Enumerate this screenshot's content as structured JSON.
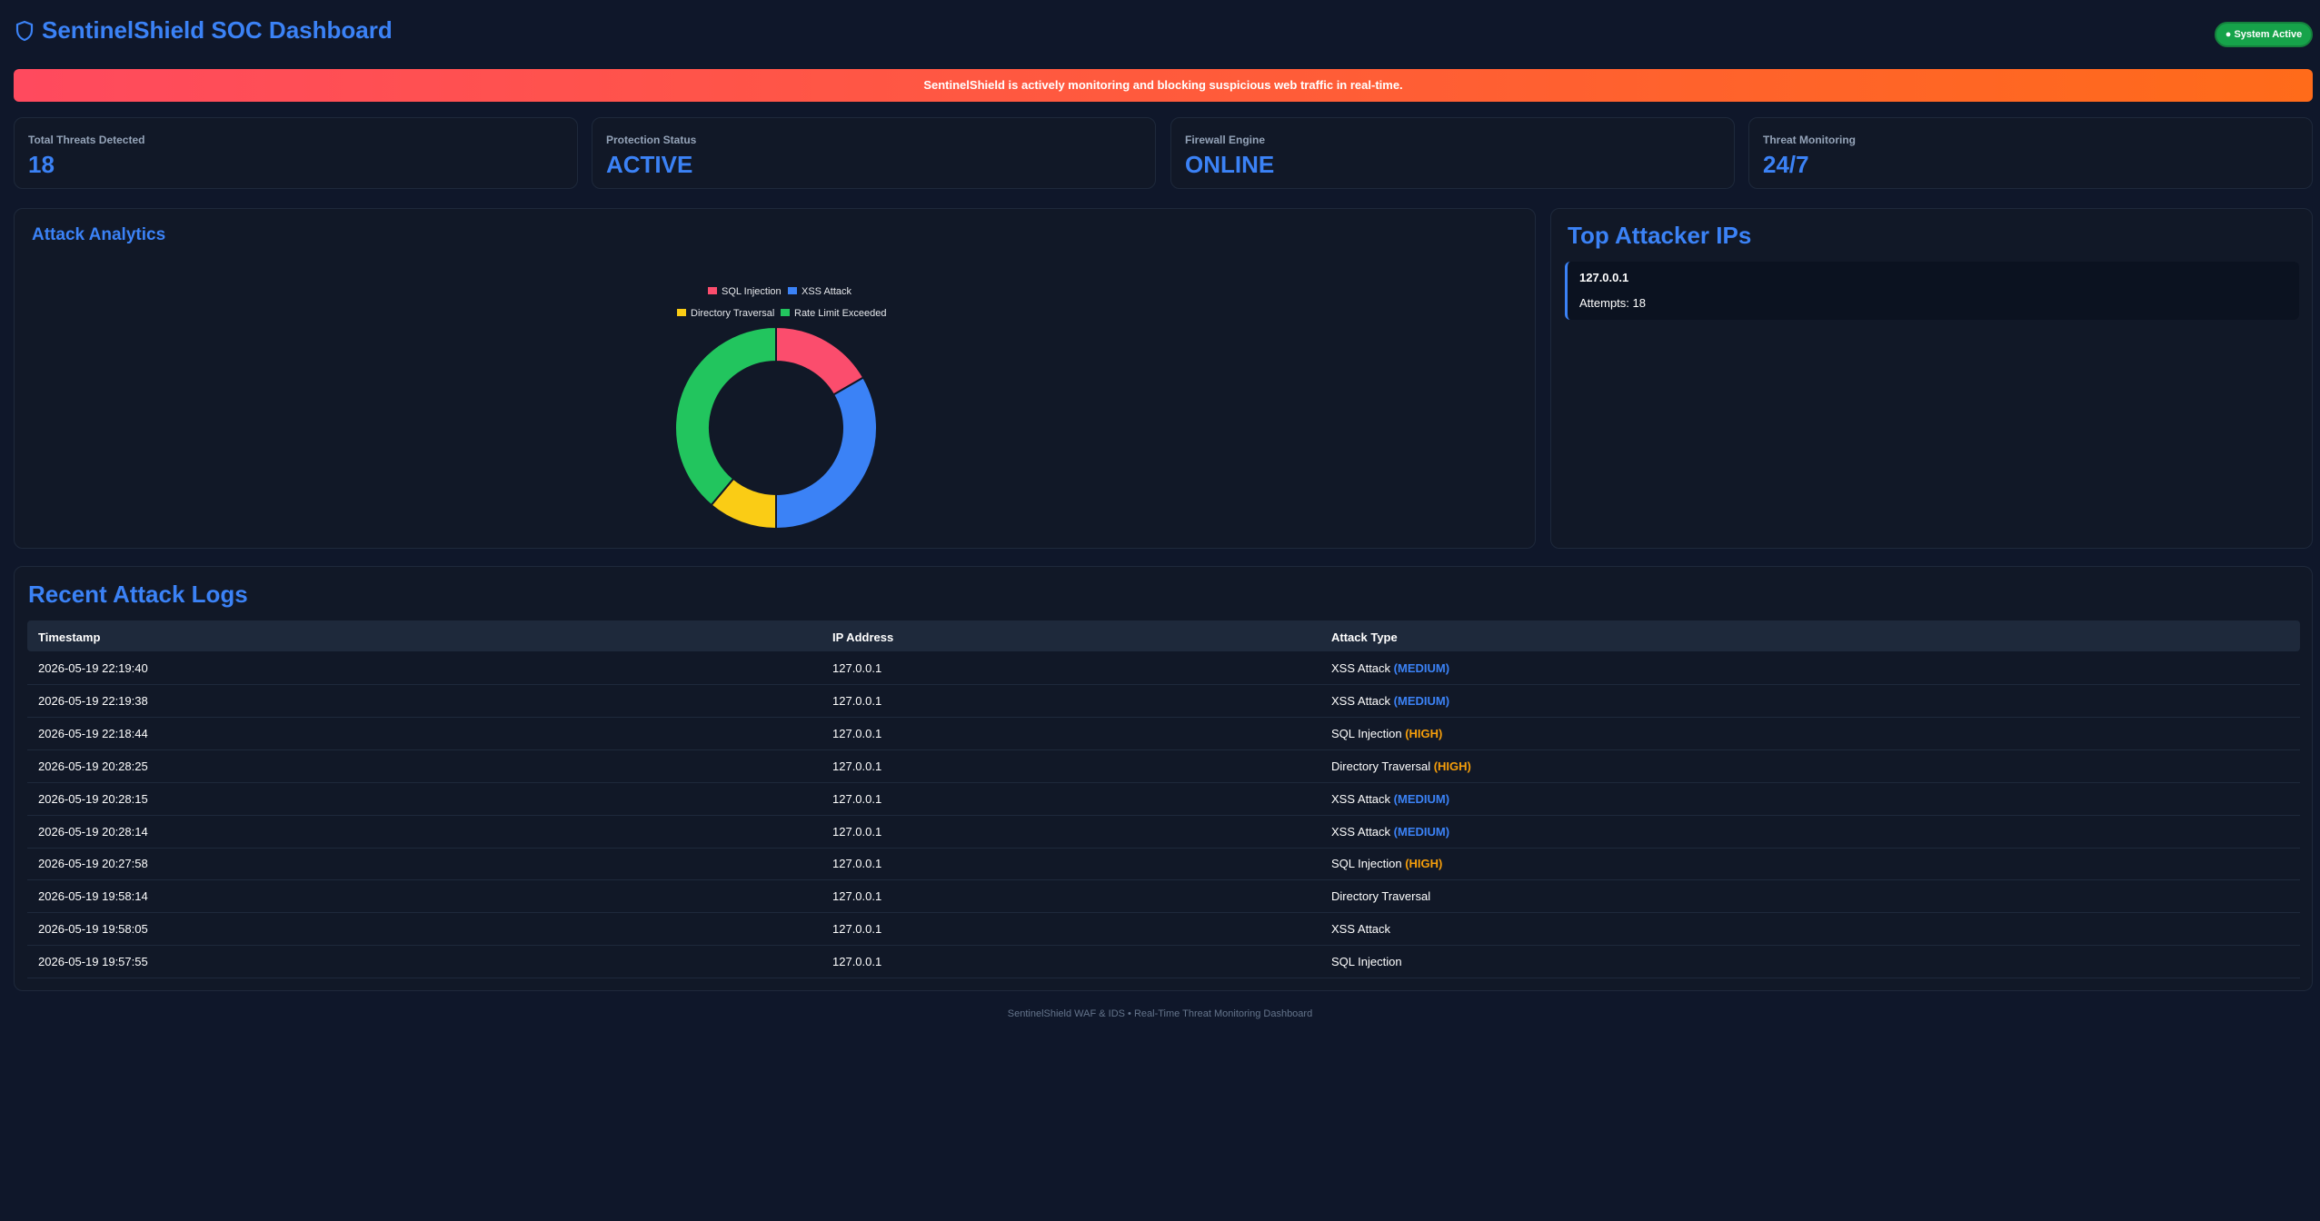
{
  "header": {
    "title": "SentinelShield SOC Dashboard",
    "status_badge": "● System Active"
  },
  "banner": "SentinelShield is actively monitoring and blocking suspicious web traffic in real-time.",
  "stats": [
    {
      "label": "Total Threats Detected",
      "value": "18"
    },
    {
      "label": "Protection Status",
      "value": "ACTIVE"
    },
    {
      "label": "Firewall Engine",
      "value": "ONLINE"
    },
    {
      "label": "Threat Monitoring",
      "value": "24/7"
    }
  ],
  "chart_data": {
    "type": "doughnut",
    "title": "Attack Analytics",
    "categories": [
      "SQL Injection",
      "XSS Attack",
      "Directory Traversal",
      "Rate Limit Exceeded"
    ],
    "values": [
      3,
      6,
      2,
      7
    ],
    "colors": [
      "#fb4d6d",
      "#3b82f6",
      "#facc15",
      "#22c55e"
    ],
    "legend": "top"
  },
  "top_attackers": {
    "title": "Top Attacker IPs",
    "items": [
      {
        "ip": "127.0.0.1",
        "attempts": "Attempts: 18"
      }
    ]
  },
  "logs": {
    "title": "Recent Attack Logs",
    "columns": [
      "Timestamp",
      "IP Address",
      "Attack Type"
    ],
    "rows": [
      {
        "timestamp": "2026-05-19 22:19:40",
        "ip": "127.0.0.1",
        "type": "XSS Attack",
        "severity": "(MEDIUM)",
        "severity_color": "#3b82f6"
      },
      {
        "timestamp": "2026-05-19 22:19:38",
        "ip": "127.0.0.1",
        "type": "XSS Attack",
        "severity": "(MEDIUM)",
        "severity_color": "#3b82f6"
      },
      {
        "timestamp": "2026-05-19 22:18:44",
        "ip": "127.0.0.1",
        "type": "SQL Injection",
        "severity": "(HIGH)",
        "severity_color": "#f59e0b"
      },
      {
        "timestamp": "2026-05-19 20:28:25",
        "ip": "127.0.0.1",
        "type": "Directory Traversal",
        "severity": "(HIGH)",
        "severity_color": "#f59e0b"
      },
      {
        "timestamp": "2026-05-19 20:28:15",
        "ip": "127.0.0.1",
        "type": "XSS Attack",
        "severity": "(MEDIUM)",
        "severity_color": "#3b82f6"
      },
      {
        "timestamp": "2026-05-19 20:28:14",
        "ip": "127.0.0.1",
        "type": "XSS Attack",
        "severity": "(MEDIUM)",
        "severity_color": "#3b82f6"
      },
      {
        "timestamp": "2026-05-19 20:27:58",
        "ip": "127.0.0.1",
        "type": "SQL Injection",
        "severity": "(HIGH)",
        "severity_color": "#f59e0b"
      },
      {
        "timestamp": "2026-05-19 19:58:14",
        "ip": "127.0.0.1",
        "type": "Directory Traversal"
      },
      {
        "timestamp": "2026-05-19 19:58:05",
        "ip": "127.0.0.1",
        "type": "XSS Attack"
      },
      {
        "timestamp": "2026-05-19 19:57:55",
        "ip": "127.0.0.1",
        "type": "SQL Injection"
      }
    ]
  },
  "footer": "SentinelShield WAF & IDS • Real-Time Threat Monitoring Dashboard"
}
